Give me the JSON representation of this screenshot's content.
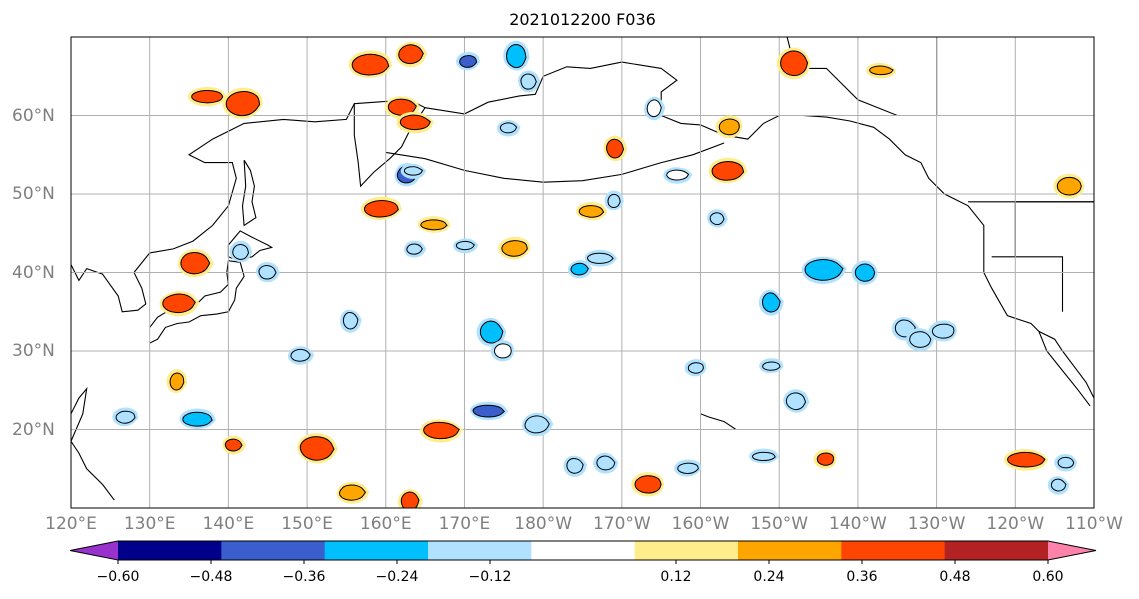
{
  "title": "2021012200 F036",
  "map": {
    "projection": "PlateCarree",
    "lon_range": [
      120,
      250
    ],
    "lat_range": [
      10,
      70
    ],
    "grid": true
  },
  "lon_ticks": [
    {
      "value": 120,
      "label": "120°E"
    },
    {
      "value": 130,
      "label": "130°E"
    },
    {
      "value": 140,
      "label": "140°E"
    },
    {
      "value": 150,
      "label": "150°E"
    },
    {
      "value": 160,
      "label": "160°E"
    },
    {
      "value": 170,
      "label": "170°E"
    },
    {
      "value": 180,
      "label": "180°W"
    },
    {
      "value": 190,
      "label": "170°W"
    },
    {
      "value": 200,
      "label": "160°W"
    },
    {
      "value": 210,
      "label": "150°W"
    },
    {
      "value": 220,
      "label": "140°W"
    },
    {
      "value": 230,
      "label": "130°W"
    },
    {
      "value": 240,
      "label": "120°W"
    },
    {
      "value": 250,
      "label": "110°W"
    }
  ],
  "lat_ticks": [
    {
      "value": 20,
      "label": "20°N"
    },
    {
      "value": 30,
      "label": "30°N"
    },
    {
      "value": 40,
      "label": "40°N"
    },
    {
      "value": 50,
      "label": "50°N"
    },
    {
      "value": 60,
      "label": "60°N"
    }
  ],
  "colorbar": {
    "levels": [
      -0.72,
      -0.6,
      -0.48,
      -0.36,
      -0.24,
      -0.12,
      0.12,
      0.24,
      0.36,
      0.48,
      0.6,
      0.72
    ],
    "colors": [
      "#9932cc",
      "#00008b",
      "#3a5fcd",
      "#00bfff",
      "#b0e2ff",
      "#ffffff",
      "#ffec8b",
      "#ffa500",
      "#ff4500",
      "#b22222",
      "#ff82ab"
    ],
    "extend": "both",
    "tick_labels": [
      {
        "value": -0.6,
        "label": "−0.60"
      },
      {
        "value": -0.48,
        "label": "−0.48"
      },
      {
        "value": -0.36,
        "label": "−0.36"
      },
      {
        "value": -0.24,
        "label": "−0.24"
      },
      {
        "value": -0.12,
        "label": "−0.12"
      },
      {
        "value": 0.12,
        "label": "0.12"
      },
      {
        "value": 0.24,
        "label": "0.24"
      },
      {
        "value": 0.36,
        "label": "0.36"
      },
      {
        "value": 0.48,
        "label": "0.48"
      },
      {
        "value": 0.6,
        "label": "0.60"
      }
    ]
  },
  "features": [
    {
      "lon": 170.5,
      "lat": 66.8,
      "level": -0.48
    },
    {
      "lon": 176.5,
      "lat": 67.4,
      "level": -0.36
    },
    {
      "lon": 178.0,
      "lat": 64.3,
      "level": -0.24
    },
    {
      "lon": 163.0,
      "lat": 67.9,
      "level": 0.36
    },
    {
      "lon": 162.0,
      "lat": 61.2,
      "level": 0.36
    },
    {
      "lon": 163.8,
      "lat": 59.2,
      "level": 0.36
    },
    {
      "lon": 137.5,
      "lat": 62.4,
      "level": 0.36
    },
    {
      "lon": 142.0,
      "lat": 61.4,
      "level": 0.36
    },
    {
      "lon": 158.0,
      "lat": 66.3,
      "level": 0.36
    },
    {
      "lon": 189.0,
      "lat": 55.7,
      "level": 0.36
    },
    {
      "lon": 162.5,
      "lat": 52.5,
      "level": -0.48
    },
    {
      "lon": 175.5,
      "lat": 58.5,
      "level": -0.24
    },
    {
      "lon": 163.5,
      "lat": 53.0,
      "level": -0.24
    },
    {
      "lon": 212.0,
      "lat": 66.7,
      "level": 0.36
    },
    {
      "lon": 203.8,
      "lat": 58.5,
      "level": 0.24
    },
    {
      "lon": 203.5,
      "lat": 52.8,
      "level": 0.36
    },
    {
      "lon": 186.0,
      "lat": 47.7,
      "level": 0.24
    },
    {
      "lon": 187.0,
      "lat": 41.8,
      "level": -0.24
    },
    {
      "lon": 184.5,
      "lat": 40.5,
      "level": -0.36
    },
    {
      "lon": 155.5,
      "lat": 34.0,
      "level": -0.24
    },
    {
      "lon": 173.5,
      "lat": 32.5,
      "level": -0.36
    },
    {
      "lon": 175.0,
      "lat": 30.0,
      "level": -0.12
    },
    {
      "lon": 127.0,
      "lat": 21.5,
      "level": -0.24
    },
    {
      "lon": 136.0,
      "lat": 21.2,
      "level": -0.36
    },
    {
      "lon": 172.8,
      "lat": 22.3,
      "level": -0.48
    },
    {
      "lon": 179.0,
      "lat": 20.7,
      "level": -0.24
    },
    {
      "lon": 215.5,
      "lat": 40.5,
      "level": -0.36
    },
    {
      "lon": 209.0,
      "lat": 36.3,
      "level": -0.36
    },
    {
      "lon": 221.0,
      "lat": 40.0,
      "level": -0.36
    },
    {
      "lon": 199.5,
      "lat": 27.8,
      "level": -0.24
    },
    {
      "lon": 209.0,
      "lat": 28.0,
      "level": -0.24
    },
    {
      "lon": 212.0,
      "lat": 23.5,
      "level": -0.24
    },
    {
      "lon": 135.5,
      "lat": 41.2,
      "level": 0.36
    },
    {
      "lon": 133.5,
      "lat": 36.2,
      "level": 0.36
    },
    {
      "lon": 167.0,
      "lat": 20.0,
      "level": 0.36
    },
    {
      "lon": 241.5,
      "lat": 16.2,
      "level": 0.36
    },
    {
      "lon": 216.0,
      "lat": 16.2,
      "level": 0.36
    },
    {
      "lon": 133.5,
      "lat": 26.0,
      "level": 0.24
    },
    {
      "lon": 141.5,
      "lat": 42.5,
      "level": -0.24
    },
    {
      "lon": 144.8,
      "lat": 40.0,
      "level": -0.24
    },
    {
      "lon": 149.0,
      "lat": 29.5,
      "level": -0.24
    },
    {
      "lon": 197.0,
      "lat": 52.5,
      "level": -0.12
    },
    {
      "lon": 223.0,
      "lat": 65.8,
      "level": 0.24
    },
    {
      "lon": 247.0,
      "lat": 51.0,
      "level": 0.24
    },
    {
      "lon": 176.5,
      "lat": 43.0,
      "level": 0.24
    },
    {
      "lon": 189.0,
      "lat": 49.0,
      "level": -0.24
    },
    {
      "lon": 202.0,
      "lat": 46.8,
      "level": -0.24
    },
    {
      "lon": 163.5,
      "lat": 43.0,
      "level": -0.24
    },
    {
      "lon": 170.0,
      "lat": 43.5,
      "level": -0.24
    },
    {
      "lon": 226.0,
      "lat": 33.0,
      "level": -0.24
    },
    {
      "lon": 228.0,
      "lat": 31.5,
      "level": -0.24
    },
    {
      "lon": 231.0,
      "lat": 32.5,
      "level": -0.24
    },
    {
      "lon": 159.5,
      "lat": 48.0,
      "level": 0.36
    },
    {
      "lon": 166.0,
      "lat": 46.0,
      "level": 0.24
    },
    {
      "lon": 140.5,
      "lat": 18.0,
      "level": 0.36
    },
    {
      "lon": 194.0,
      "lat": 61.0,
      "level": -0.12
    },
    {
      "lon": 184.0,
      "lat": 15.5,
      "level": -0.24
    },
    {
      "lon": 188.0,
      "lat": 15.8,
      "level": -0.24
    },
    {
      "lon": 193.5,
      "lat": 13.0,
      "level": 0.36
    },
    {
      "lon": 198.5,
      "lat": 15.0,
      "level": -0.24
    },
    {
      "lon": 208.0,
      "lat": 16.5,
      "level": -0.24
    },
    {
      "lon": 151.0,
      "lat": 17.5,
      "level": 0.36
    },
    {
      "lon": 155.5,
      "lat": 12.0,
      "level": 0.24
    },
    {
      "lon": 163.0,
      "lat": 11.0,
      "level": 0.36
    },
    {
      "lon": 245.5,
      "lat": 13.0,
      "level": -0.24
    },
    {
      "lon": 246.5,
      "lat": 15.8,
      "level": -0.24
    }
  ]
}
